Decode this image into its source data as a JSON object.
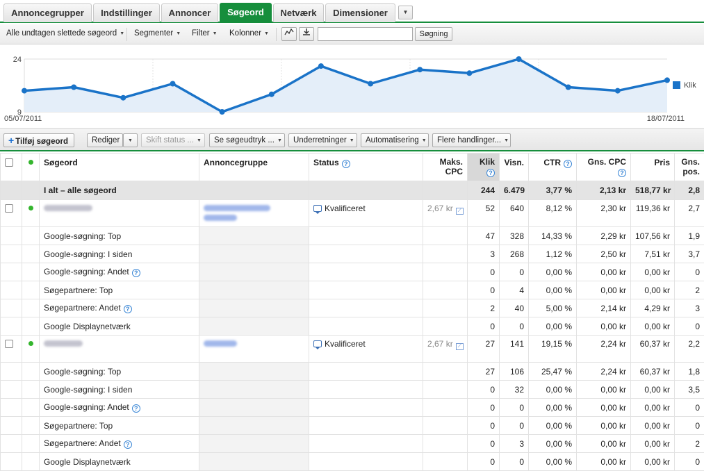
{
  "tabs": [
    {
      "label": "Annoncegrupper",
      "active": false
    },
    {
      "label": "Indstillinger",
      "active": false
    },
    {
      "label": "Annoncer",
      "active": false
    },
    {
      "label": "Søgeord",
      "active": true
    },
    {
      "label": "Netværk",
      "active": false
    },
    {
      "label": "Dimensioner",
      "active": false
    }
  ],
  "toolbar": {
    "filter_view": "Alle undtagen slettede søgeord",
    "segments": "Segmenter",
    "filter": "Filter",
    "columns": "Kolonner",
    "search_placeholder": "",
    "search_button": "Søgning"
  },
  "chart_data": {
    "type": "line",
    "x": [
      "05/07/2011",
      "06/07/2011",
      "07/07/2011",
      "08/07/2011",
      "09/07/2011",
      "10/07/2011",
      "11/07/2011",
      "12/07/2011",
      "13/07/2011",
      "14/07/2011",
      "15/07/2011",
      "16/07/2011",
      "17/07/2011",
      "18/07/2011"
    ],
    "series": [
      {
        "name": "Klik",
        "values": [
          15,
          16,
          13,
          17,
          9,
          14,
          22,
          17,
          21,
          20,
          24,
          16,
          15,
          18
        ]
      }
    ],
    "ylim": [
      9,
      24
    ],
    "yticks": [
      "24",
      "9"
    ],
    "x_start_label": "05/07/2011",
    "x_end_label": "18/07/2011",
    "legend_label": "Klik",
    "color": "#1a73c8"
  },
  "actions": {
    "add_keyword": "Tilføj søgeord",
    "edit": "Rediger",
    "change_status": "Skift status ...",
    "search_terms": "Se søgeudtryk ...",
    "alerts": "Underretninger",
    "automation": "Automatisering",
    "more_actions": "Flere handlinger..."
  },
  "table": {
    "headers": {
      "keyword": "Søgeord",
      "adgroup": "Annoncegruppe",
      "status": "Status",
      "max_cpc_1": "Maks.",
      "max_cpc_2": "CPC",
      "clicks": "Klik",
      "impressions": "Visn.",
      "ctr": "CTR",
      "avg_cpc": "Gns. CPC",
      "cost": "Pris",
      "avg_pos_1": "Gns.",
      "avg_pos_2": "pos."
    },
    "total": {
      "label": "I alt – alle søgeord",
      "clicks": "244",
      "impressions": "6.479",
      "ctr": "3,77 %",
      "avg_cpc": "2,13 kr",
      "cost": "518,77 kr",
      "avg_pos": "2,8"
    },
    "keywords": [
      {
        "status": "Kvalificeret",
        "max_cpc": "2,67 kr",
        "clicks": "52",
        "impressions": "640",
        "ctr": "8,12 %",
        "avg_cpc": "2,30 kr",
        "cost": "119,36 kr",
        "avg_pos": "2,7",
        "segments": [
          {
            "label": "Google-søgning: Top",
            "help": false,
            "clicks": "47",
            "impressions": "328",
            "ctr": "14,33 %",
            "avg_cpc": "2,29 kr",
            "cost": "107,56 kr",
            "avg_pos": "1,9"
          },
          {
            "label": "Google-søgning: I siden",
            "help": false,
            "clicks": "3",
            "impressions": "268",
            "ctr": "1,12 %",
            "avg_cpc": "2,50 kr",
            "cost": "7,51 kr",
            "avg_pos": "3,7"
          },
          {
            "label": "Google-søgning: Andet",
            "help": true,
            "clicks": "0",
            "impressions": "0",
            "ctr": "0,00 %",
            "avg_cpc": "0,00 kr",
            "cost": "0,00 kr",
            "avg_pos": "0"
          },
          {
            "label": "Søgepartnere: Top",
            "help": false,
            "clicks": "0",
            "impressions": "4",
            "ctr": "0,00 %",
            "avg_cpc": "0,00 kr",
            "cost": "0,00 kr",
            "avg_pos": "2"
          },
          {
            "label": "Søgepartnere: Andet",
            "help": true,
            "clicks": "2",
            "impressions": "40",
            "ctr": "5,00 %",
            "avg_cpc": "2,14 kr",
            "cost": "4,29 kr",
            "avg_pos": "3"
          },
          {
            "label": "Google Displaynetværk",
            "help": false,
            "clicks": "0",
            "impressions": "0",
            "ctr": "0,00 %",
            "avg_cpc": "0,00 kr",
            "cost": "0,00 kr",
            "avg_pos": "0"
          }
        ]
      },
      {
        "status": "Kvalificeret",
        "max_cpc": "2,67 kr",
        "clicks": "27",
        "impressions": "141",
        "ctr": "19,15 %",
        "avg_cpc": "2,24 kr",
        "cost": "60,37 kr",
        "avg_pos": "2,2",
        "segments": [
          {
            "label": "Google-søgning: Top",
            "help": false,
            "clicks": "27",
            "impressions": "106",
            "ctr": "25,47 %",
            "avg_cpc": "2,24 kr",
            "cost": "60,37 kr",
            "avg_pos": "1,8"
          },
          {
            "label": "Google-søgning: I siden",
            "help": false,
            "clicks": "0",
            "impressions": "32",
            "ctr": "0,00 %",
            "avg_cpc": "0,00 kr",
            "cost": "0,00 kr",
            "avg_pos": "3,5"
          },
          {
            "label": "Google-søgning: Andet",
            "help": true,
            "clicks": "0",
            "impressions": "0",
            "ctr": "0,00 %",
            "avg_cpc": "0,00 kr",
            "cost": "0,00 kr",
            "avg_pos": "0"
          },
          {
            "label": "Søgepartnere: Top",
            "help": false,
            "clicks": "0",
            "impressions": "0",
            "ctr": "0,00 %",
            "avg_cpc": "0,00 kr",
            "cost": "0,00 kr",
            "avg_pos": "0"
          },
          {
            "label": "Søgepartnere: Andet",
            "help": true,
            "clicks": "0",
            "impressions": "3",
            "ctr": "0,00 %",
            "avg_cpc": "0,00 kr",
            "cost": "0,00 kr",
            "avg_pos": "2"
          },
          {
            "label": "Google Displaynetværk",
            "help": false,
            "clicks": "0",
            "impressions": "0",
            "ctr": "0,00 %",
            "avg_cpc": "0,00 kr",
            "cost": "0,00 kr",
            "avg_pos": "0"
          }
        ]
      }
    ]
  }
}
